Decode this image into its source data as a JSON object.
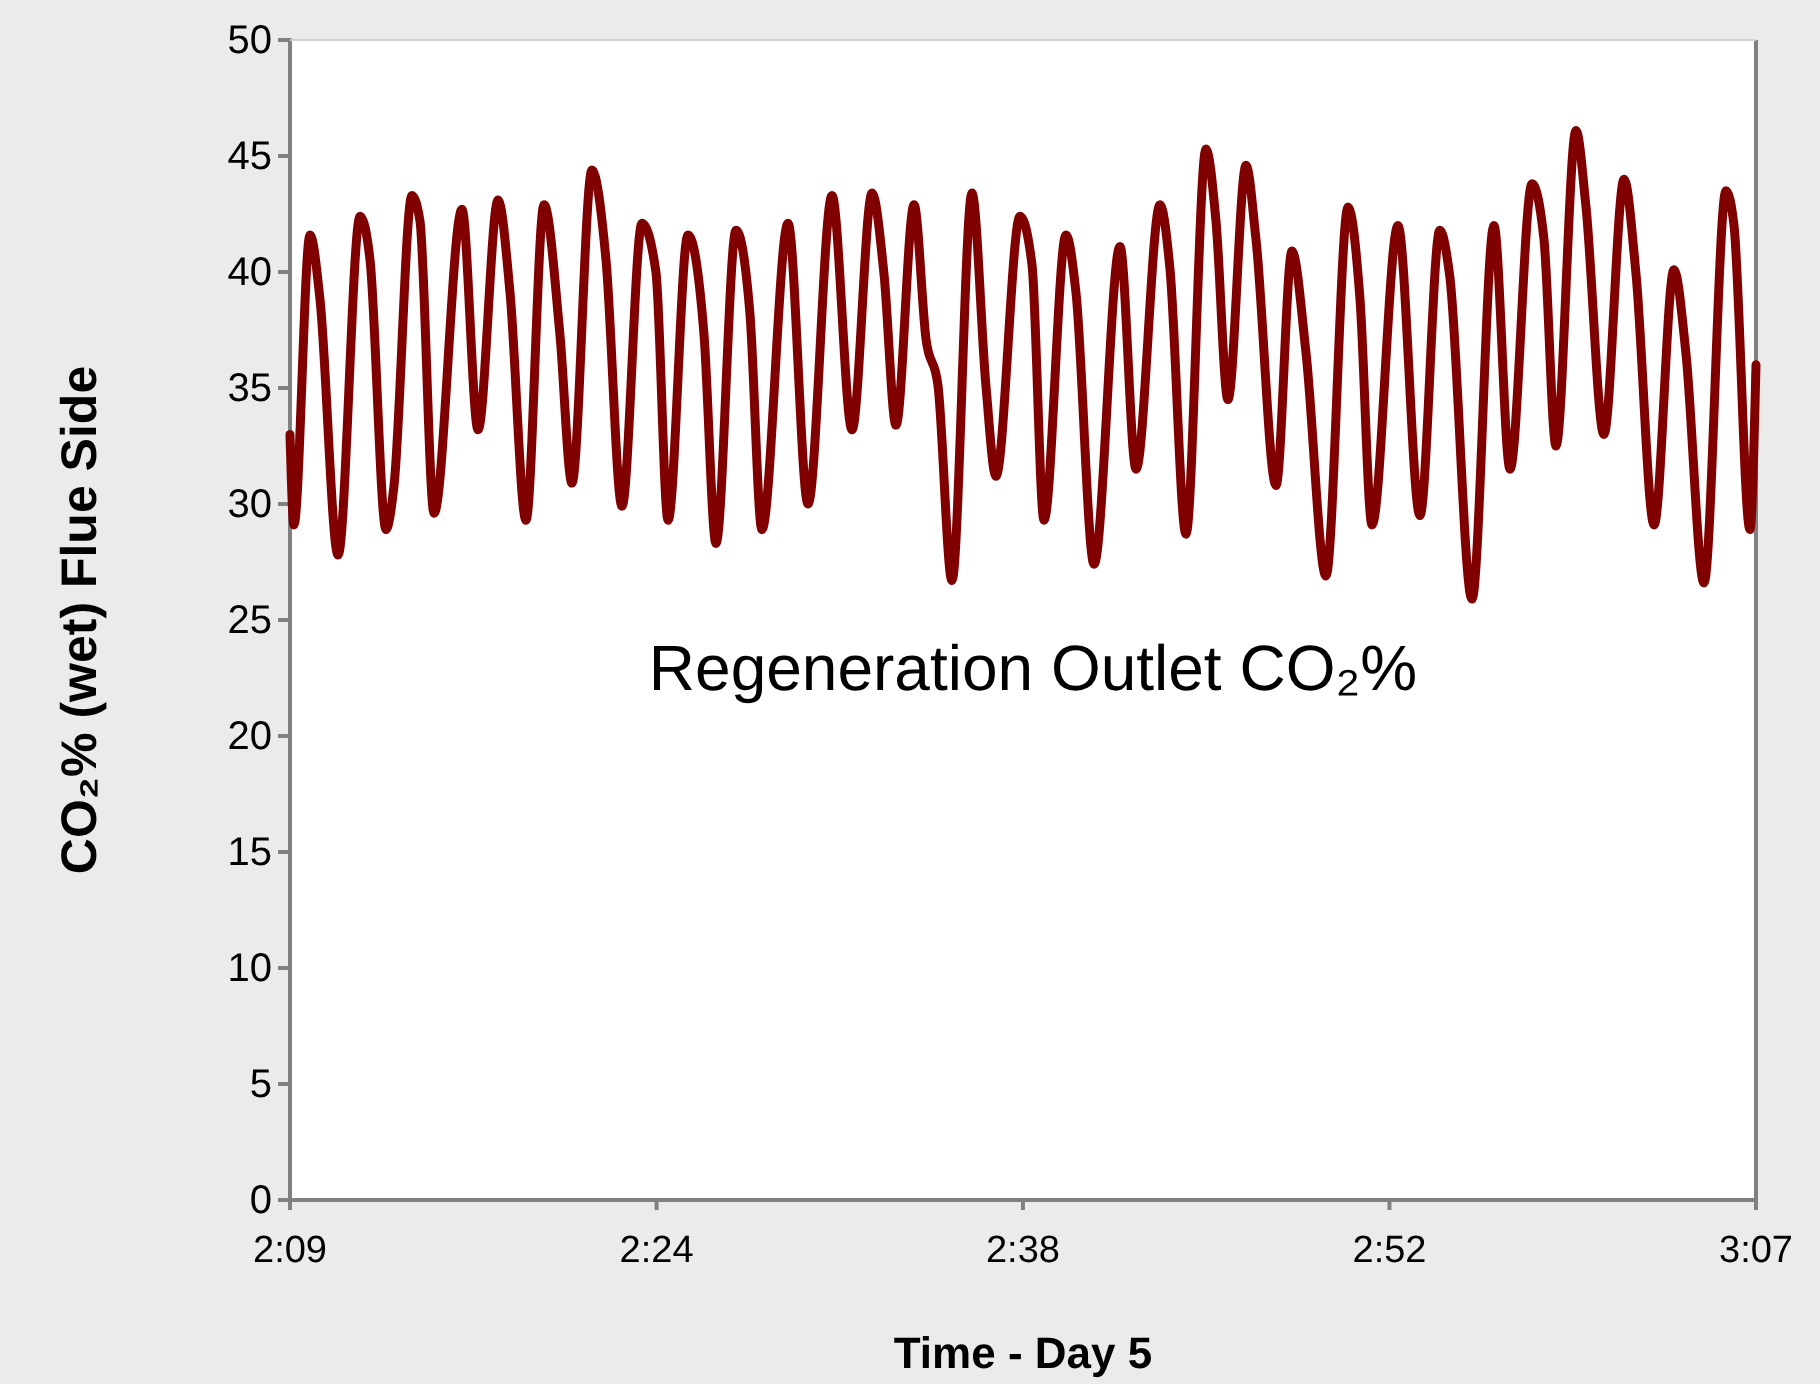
{
  "chart_data": {
    "type": "line",
    "xlabel": "Time - Day 5",
    "ylabel": "CO₂% (wet) Flue Side",
    "annotations": [
      "Regeneration Outlet CO₂%"
    ],
    "xlim": [
      2.15,
      3.1167
    ],
    "xticks": [
      {
        "value": 2.15,
        "label": "2:09"
      },
      {
        "value": 2.3917,
        "label": "2:24"
      },
      {
        "value": 2.6333,
        "label": "2:38"
      },
      {
        "value": 2.875,
        "label": "2:52"
      },
      {
        "value": 3.1167,
        "label": "3:07"
      }
    ],
    "ylim": [
      0,
      50
    ],
    "yticks": [
      0,
      5,
      10,
      15,
      20,
      25,
      30,
      35,
      40,
      45,
      50
    ],
    "grid": false,
    "marker": "none",
    "line_style": "solid",
    "series": [
      {
        "color": "#800000",
        "x": [
          2.15,
          2.1526,
          2.1632,
          2.1698,
          2.1817,
          2.1962,
          2.2028,
          2.2133,
          2.2186,
          2.2304,
          2.2357,
          2.245,
          2.2634,
          2.274,
          2.2872,
          2.2951,
          2.3056,
          2.3175,
          2.328,
          2.3359,
          2.3491,
          2.3584,
          2.3689,
          2.3821,
          2.3913,
          2.3993,
          2.4124,
          2.423,
          2.4309,
          2.4441,
          2.4533,
          2.4612,
          2.4784,
          2.4916,
          2.5074,
          2.5206,
          2.5338,
          2.5417,
          2.5496,
          2.5615,
          2.5694,
          2.5773,
          2.5865,
          2.5997,
          2.6089,
          2.6155,
          2.6314,
          2.6393,
          2.6472,
          2.6617,
          2.6683,
          2.6802,
          2.6973,
          2.7079,
          2.7237,
          2.7303,
          2.7408,
          2.754,
          2.7606,
          2.7685,
          2.7804,
          2.787,
          2.8002,
          2.8107,
          2.82,
          2.8331,
          2.8477,
          2.8556,
          2.8635,
          2.8806,
          2.8951,
          2.9082,
          2.9148,
          2.9294,
          2.9439,
          2.9545,
          2.969,
          2.9769,
          2.9848,
          2.998,
          3.0046,
          3.0164,
          3.0297,
          3.0376,
          3.0495,
          3.0626,
          3.0705,
          3.0824,
          3.0969,
          3.1022,
          3.1127,
          3.1167
        ],
        "values": [
          33.0,
          29.1,
          41.6,
          38.8,
          27.8,
          42.4,
          40.5,
          28.9,
          30.8,
          43.3,
          42.2,
          29.6,
          42.7,
          33.2,
          43.1,
          39.1,
          29.3,
          42.9,
          37.3,
          30.9,
          44.4,
          40.5,
          29.9,
          42.1,
          40.0,
          29.3,
          41.6,
          37.3,
          28.3,
          41.8,
          38.2,
          28.9,
          42.1,
          30.0,
          43.3,
          33.2,
          43.4,
          39.9,
          33.4,
          42.9,
          37.1,
          35.1,
          26.7,
          43.4,
          35.1,
          31.2,
          42.4,
          40.3,
          29.3,
          41.6,
          39.1,
          27.4,
          41.1,
          31.5,
          42.9,
          40.1,
          28.7,
          45.3,
          42.2,
          34.5,
          44.6,
          41.4,
          30.8,
          40.9,
          36.5,
          26.9,
          42.8,
          38.8,
          29.1,
          42.0,
          29.5,
          41.8,
          39.8,
          25.9,
          42.0,
          31.5,
          43.8,
          41.4,
          32.5,
          46.1,
          42.8,
          33.0,
          44.0,
          39.9,
          29.1,
          40.1,
          36.5,
          26.6,
          43.5,
          42.0,
          28.9,
          36.0
        ]
      }
    ]
  }
}
